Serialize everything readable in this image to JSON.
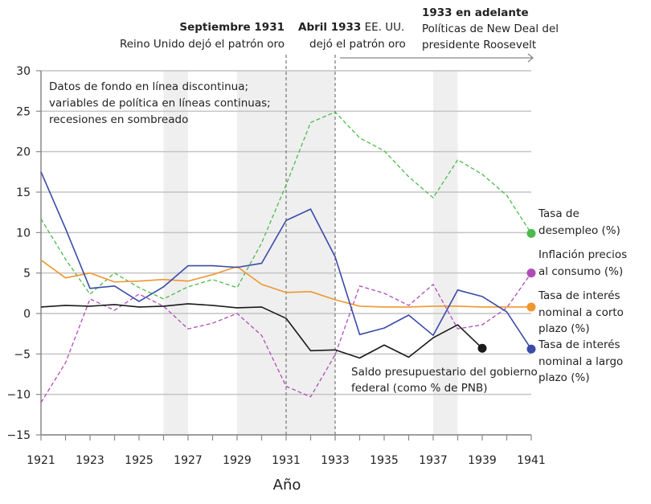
{
  "chart_data": {
    "type": "line",
    "xlabel": "Año",
    "ylabel": "",
    "xlim": [
      1921,
      1941
    ],
    "ylim": [
      -15,
      30
    ],
    "x_ticks": [
      1921,
      1923,
      1925,
      1927,
      1929,
      1931,
      1933,
      1935,
      1937,
      1939,
      1941
    ],
    "y_ticks": [
      30,
      25,
      20,
      15,
      10,
      5,
      0,
      -5,
      -10,
      -15
    ],
    "grid": "horizontal",
    "recessions": [
      [
        1926,
        1927
      ],
      [
        1929,
        1933
      ],
      [
        1937,
        1938
      ]
    ],
    "note_lines": [
      "Datos de fondo en línea discontinua;",
      "variables de política en líneas continuas;",
      "recesiones en sombreado"
    ],
    "events": [
      {
        "year": 1931,
        "bold": "Septiembre 1931",
        "text": "Reino Unido dejó el patrón oro"
      },
      {
        "year": 1933,
        "bold": "Abril 1933",
        "text_inline": " EE. UU.",
        "text": "dejó el patrón oro"
      }
    ],
    "new_deal": {
      "bold": "1933 en adelante",
      "lines": [
        "Políticas de New Deal del",
        "presidente Roosevelt"
      ],
      "from": 1933,
      "to": 1941
    },
    "series": [
      {
        "name": "Tasa de desempleo (%)",
        "label_lines": [
          "Tasa de",
          "desempleo (%)"
        ],
        "color": "#4cbb4c",
        "dashed": true,
        "x_start": 1921,
        "values": [
          11.7,
          6.7,
          2.4,
          5.0,
          3.2,
          1.8,
          3.3,
          4.2,
          3.2,
          8.7,
          15.9,
          23.6,
          24.9,
          21.7,
          20.1,
          16.9,
          14.3,
          19.0,
          17.2,
          14.6,
          9.9
        ]
      },
      {
        "name": "Inflación precios al consumo (%)",
        "label_lines": [
          "Inflación precios",
          "al consumo (%)"
        ],
        "color": "#b04cb8",
        "dashed": true,
        "x_start": 1921,
        "values": [
          -11.0,
          -6.1,
          1.8,
          0.4,
          2.4,
          0.9,
          -1.9,
          -1.2,
          0.0,
          -2.7,
          -9.0,
          -10.3,
          -5.1,
          3.4,
          2.5,
          1.0,
          3.6,
          -1.9,
          -1.4,
          0.7,
          5.0
        ]
      },
      {
        "name": "Tasa de interés nominal a corto plazo (%)",
        "label_lines": [
          "Tasa de interés",
          "nominal a corto",
          "plazo (%)"
        ],
        "color": "#f0962f",
        "dashed": false,
        "x_start": 1921,
        "values": [
          6.6,
          4.4,
          5.0,
          3.9,
          4.0,
          4.2,
          4.0,
          4.8,
          5.8,
          3.6,
          2.6,
          2.7,
          1.7,
          0.9,
          0.8,
          0.8,
          0.9,
          0.9,
          0.8,
          0.8,
          0.8
        ]
      },
      {
        "name": "Tasa de interés nominal a largo plazo (%)",
        "label_lines": [
          "Tasa de interés",
          "nominal a largo",
          "plazo (%)"
        ],
        "color": "#3a4ba8",
        "dashed": false,
        "x_start": 1921,
        "values": [
          17.5,
          10.5,
          3.1,
          3.4,
          1.5,
          3.3,
          5.9,
          5.9,
          5.7,
          6.2,
          11.5,
          12.9,
          7.0,
          -2.6,
          -1.8,
          -0.2,
          -2.7,
          2.9,
          2.1,
          0.2,
          -4.4
        ]
      },
      {
        "name": "Saldo presupuestario del gobierno federal (como % de PNB)",
        "label_lines": [
          "Saldo presupuestario del gobierno",
          "federal (como % de PNB)"
        ],
        "color": "#1a1a1a",
        "dashed": false,
        "x_start": 1921,
        "values": [
          0.8,
          1.0,
          0.9,
          1.1,
          0.8,
          0.9,
          1.2,
          1.0,
          0.7,
          0.8,
          -0.6,
          -4.6,
          -4.5,
          -5.5,
          -3.9,
          -5.4,
          -3.0,
          -1.4,
          -4.3
        ]
      }
    ]
  }
}
